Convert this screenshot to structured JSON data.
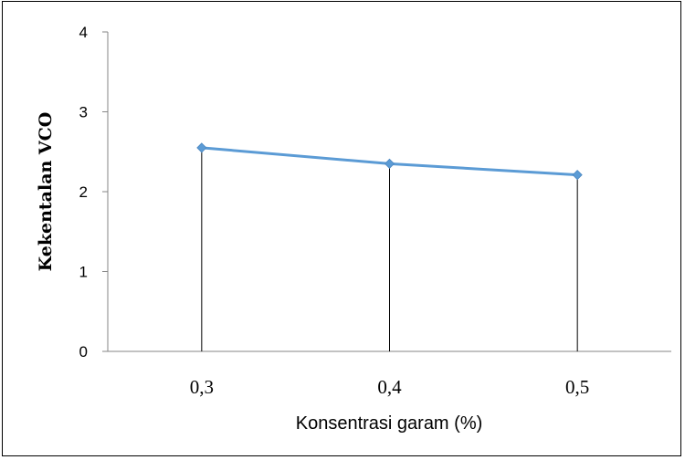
{
  "chart_data": {
    "type": "line",
    "title": "",
    "xlabel": "Konsentrasi garam (%)",
    "ylabel": "Kekentalan VCO",
    "categories": [
      "0,3",
      "0,4",
      "0,5"
    ],
    "series": [
      {
        "values": [
          2.55,
          2.35,
          2.21
        ],
        "color": "#5B9BD5",
        "marker": "diamond"
      }
    ],
    "drop_lines": true,
    "ylim": [
      0,
      4
    ],
    "yticks": [
      "0",
      "1",
      "2",
      "3",
      "4"
    ],
    "grid": false,
    "legend": "none"
  }
}
